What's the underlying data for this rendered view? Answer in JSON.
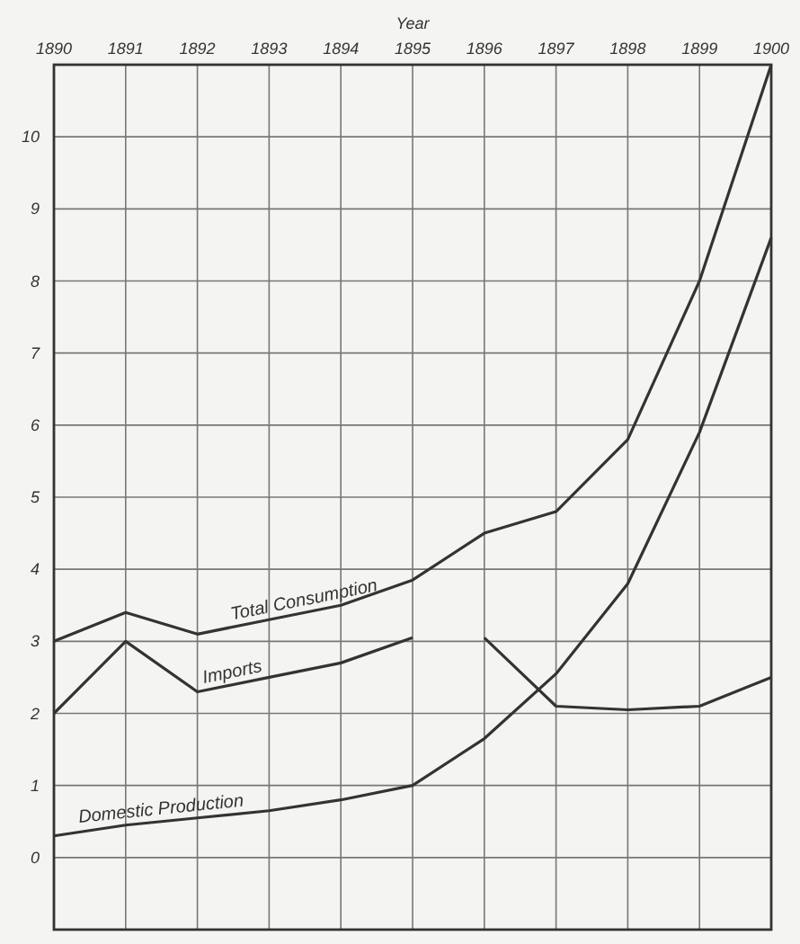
{
  "chart_data": {
    "type": "line",
    "xlabel": "Year",
    "xlim": [
      1890,
      1900
    ],
    "xticks": [
      1890,
      1891,
      1892,
      1893,
      1894,
      1895,
      1896,
      1897,
      1898,
      1899,
      1900
    ],
    "ylim": [
      -1,
      11
    ],
    "yticks": [
      0,
      1,
      2,
      3,
      4,
      5,
      6,
      7,
      8,
      9,
      10
    ],
    "grid": true,
    "line_style": "solid",
    "series": [
      {
        "name": "Total Consumption",
        "color": "#333333",
        "x": [
          1890,
          1891,
          1892,
          1893,
          1894,
          1895,
          1896,
          1897,
          1898,
          1899,
          1900
        ],
        "values": [
          3.0,
          3.4,
          3.1,
          3.3,
          3.5,
          3.85,
          4.5,
          4.8,
          5.8,
          8.0,
          11.0
        ]
      },
      {
        "name": "Imports",
        "color": "#333333",
        "x": [
          1890,
          1891,
          1892,
          1893,
          1894,
          1895,
          1895.5,
          1896,
          1897,
          1898,
          1899,
          1900
        ],
        "values": [
          2.0,
          3.0,
          2.3,
          2.5,
          2.7,
          3.05,
          null,
          3.05,
          2.1,
          2.05,
          2.1,
          2.5
        ]
      },
      {
        "name": "Domestic Production",
        "color": "#333333",
        "x": [
          1890,
          1891,
          1892,
          1893,
          1894,
          1895,
          1896,
          1897,
          1898,
          1899,
          1900
        ],
        "values": [
          0.3,
          0.45,
          0.55,
          0.65,
          0.8,
          1.0,
          1.65,
          2.55,
          3.8,
          5.9,
          8.6
        ]
      }
    ]
  }
}
